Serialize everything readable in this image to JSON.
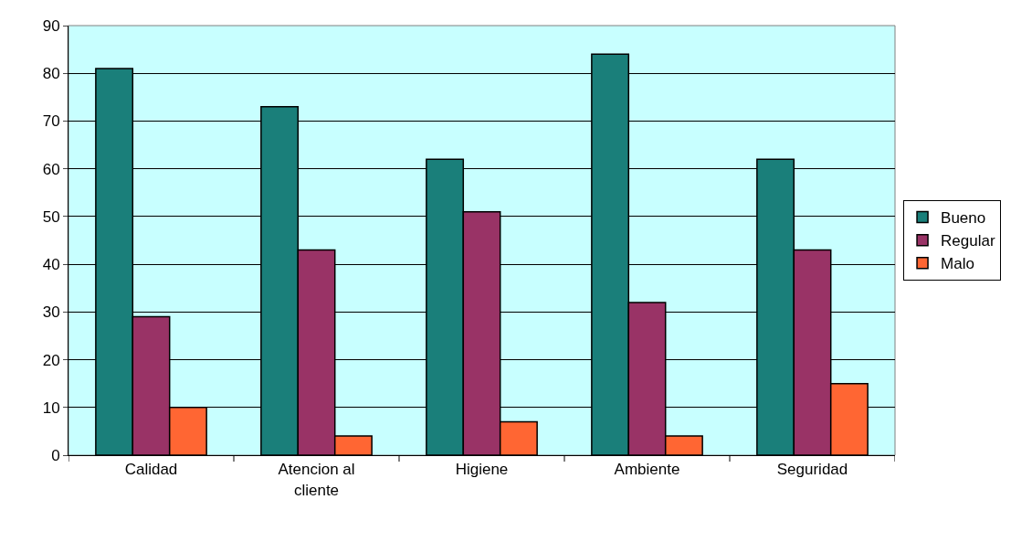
{
  "chart_data": {
    "type": "bar",
    "categories": [
      "Calidad",
      "Atencion al cliente",
      "Higiene",
      "Ambiente",
      "Seguridad"
    ],
    "series": [
      {
        "name": "Bueno",
        "color": "#1a7f7a",
        "values": [
          81,
          73,
          62,
          84,
          62
        ]
      },
      {
        "name": "Regular",
        "color": "#993366",
        "values": [
          29,
          43,
          51,
          32,
          43
        ]
      },
      {
        "name": "Malo",
        "color": "#ff6633",
        "values": [
          10,
          4,
          7,
          4,
          15
        ]
      }
    ],
    "ylim": [
      0,
      90
    ],
    "yticks": [
      0,
      10,
      20,
      30,
      40,
      50,
      60,
      70,
      80,
      90
    ],
    "grid": "y",
    "legend": "right"
  }
}
